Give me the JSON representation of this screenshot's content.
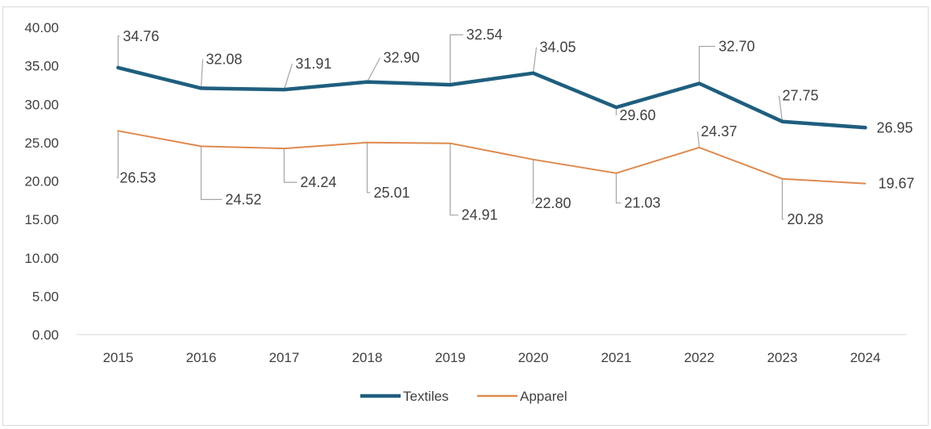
{
  "chart_data": {
    "type": "line",
    "categories": [
      "2015",
      "2016",
      "2017",
      "2018",
      "2019",
      "2020",
      "2021",
      "2022",
      "2023",
      "2024"
    ],
    "series": [
      {
        "name": "Textiles",
        "values": [
          34.76,
          32.08,
          31.91,
          32.9,
          32.54,
          34.05,
          29.6,
          32.7,
          27.75,
          26.95
        ],
        "labels": [
          "34.76",
          "32.08",
          "31.91",
          "32.90",
          "32.54",
          "34.05",
          "29.60",
          "32.70",
          "27.75",
          "26.95"
        ],
        "color": "#1f5e7e"
      },
      {
        "name": "Apparel",
        "values": [
          26.53,
          24.52,
          24.24,
          25.01,
          24.91,
          22.8,
          21.03,
          24.37,
          20.28,
          19.67
        ],
        "labels": [
          "26.53",
          "24.52",
          "24.24",
          "25.01",
          "24.91",
          "22.80",
          "21.03",
          "24.37",
          "20.28",
          "19.67"
        ],
        "color": "#de8a4f"
      }
    ],
    "yticks": [
      "0.00",
      "5.00",
      "10.00",
      "15.00",
      "20.00",
      "25.00",
      "30.00",
      "35.00",
      "40.00"
    ],
    "ylim": [
      0,
      40
    ],
    "grid": false,
    "legend": "bottom",
    "title": "",
    "xlabel": "",
    "ylabel": ""
  }
}
